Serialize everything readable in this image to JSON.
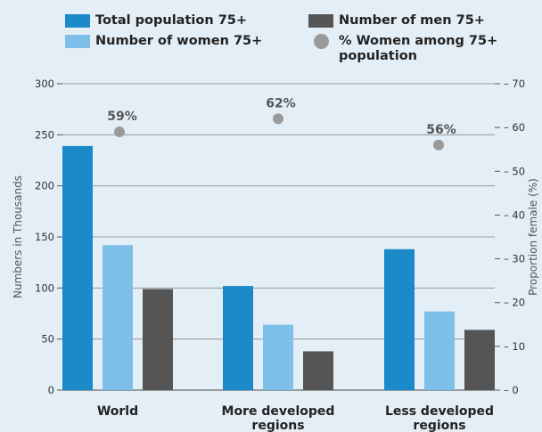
{
  "chart_data": {
    "type": "bar",
    "categories": [
      "World",
      "More developed regions",
      "Less developed regions"
    ],
    "category_labels": [
      [
        "World"
      ],
      [
        "More developed",
        "regions"
      ],
      [
        "Less developed",
        "regions"
      ]
    ],
    "series": [
      {
        "name": "Total population 75+",
        "values": [
          239,
          102,
          138
        ],
        "color": "#1a8ac9"
      },
      {
        "name": "Number of women 75+",
        "values": [
          142,
          64,
          77
        ],
        "color": "#7ebfea"
      },
      {
        "name": "Number of men 75+",
        "values": [
          99,
          38,
          59
        ],
        "color": "#555555"
      }
    ],
    "line_series": {
      "name": "% Women among 75+ population",
      "values": [
        59,
        62,
        56
      ],
      "labels": [
        "59%",
        "62%",
        "56%"
      ],
      "color": "#999999",
      "axis": "right"
    },
    "ylabel": "Numbers in Thousands",
    "y2label": "Proportion female (%)",
    "ylim": [
      0,
      300
    ],
    "y2lim": [
      0,
      70
    ],
    "yticks": [
      0,
      50,
      100,
      150,
      200,
      250,
      300
    ],
    "y2ticks": [
      0,
      10,
      20,
      30,
      40,
      50,
      60,
      70
    ],
    "grid": true,
    "legend_position": "top"
  },
  "legend": {
    "total": "Total population 75+",
    "women": "Number of women 75+",
    "men": "Number of men 75+",
    "pct": "% Women among 75+ population"
  },
  "colors": {
    "total": "#1a8ac9",
    "women": "#7ebfea",
    "men": "#555555",
    "pct": "#999999"
  }
}
